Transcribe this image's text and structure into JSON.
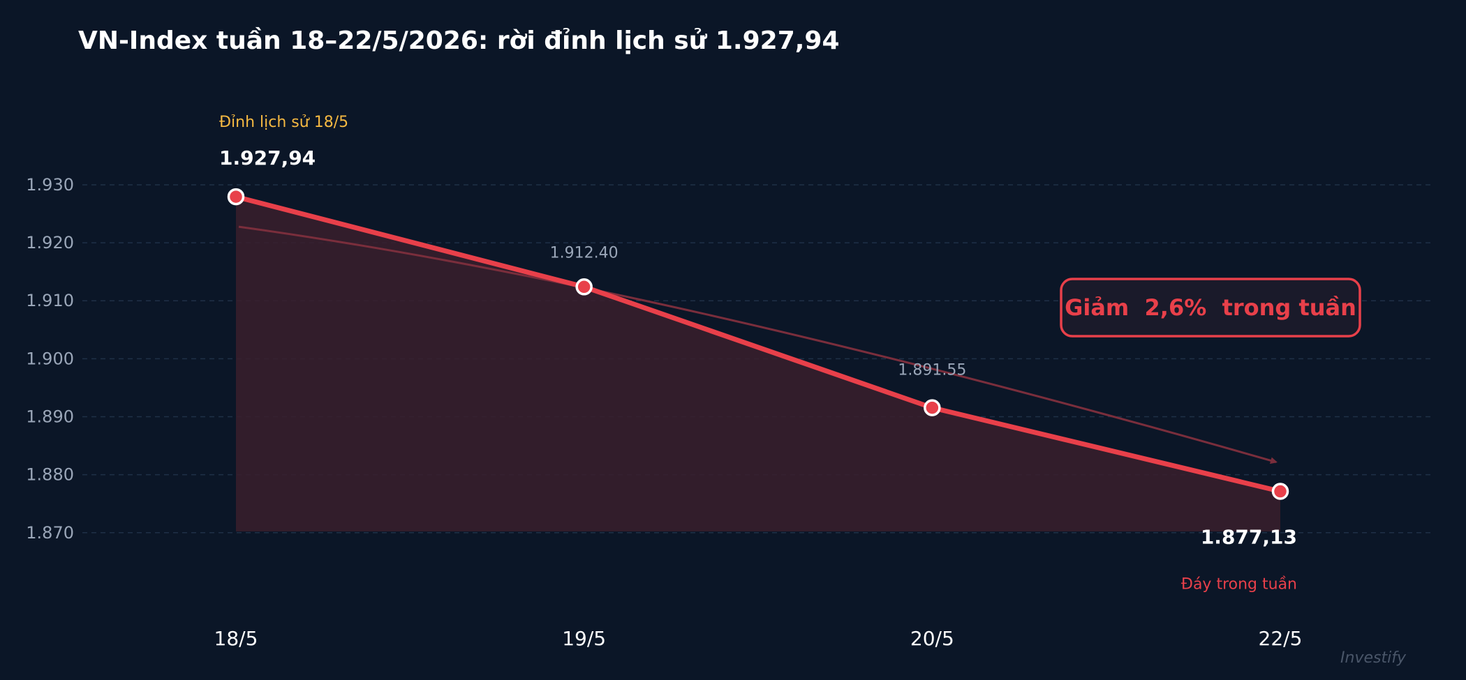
{
  "chart_data": {
    "type": "line",
    "title": "VN-Index tuần 18–22/5/2026: rời đỉnh lịch sử 1.927,94",
    "categories": [
      "18/5",
      "19/5",
      "20/5",
      "22/5"
    ],
    "values": [
      1927.94,
      1912.4,
      1891.55,
      1877.13
    ],
    "y_ticks": [
      "1.930",
      "1.920",
      "1.910",
      "1.900",
      "1.890",
      "1.880",
      "1.870"
    ],
    "y_tick_values": [
      1930,
      1920,
      1910,
      1900,
      1890,
      1880,
      1870
    ],
    "ylim": [
      1864.2,
      1931.8
    ],
    "xlabel": "",
    "ylabel": "",
    "grid": true,
    "data_labels": [
      "1.927,94",
      "1.912.40",
      "1.891.55",
      "1.877,13"
    ],
    "annotations": {
      "peak_label": "Đỉnh lịch sử 18/5",
      "low_label": "Đáy trong tuần",
      "change_badge": "Giảm  2,6%  trong tuần"
    },
    "watermark": "Investify",
    "colors": {
      "background": "#0b1627",
      "line": "#e8404a",
      "area": "#3a1e2d",
      "peak_label": "#f5b942",
      "low_label": "#e8404a",
      "axis_text": "#9aa6b8",
      "grid": "#1f3047",
      "trend_arrow": "#7a2e3c"
    }
  }
}
